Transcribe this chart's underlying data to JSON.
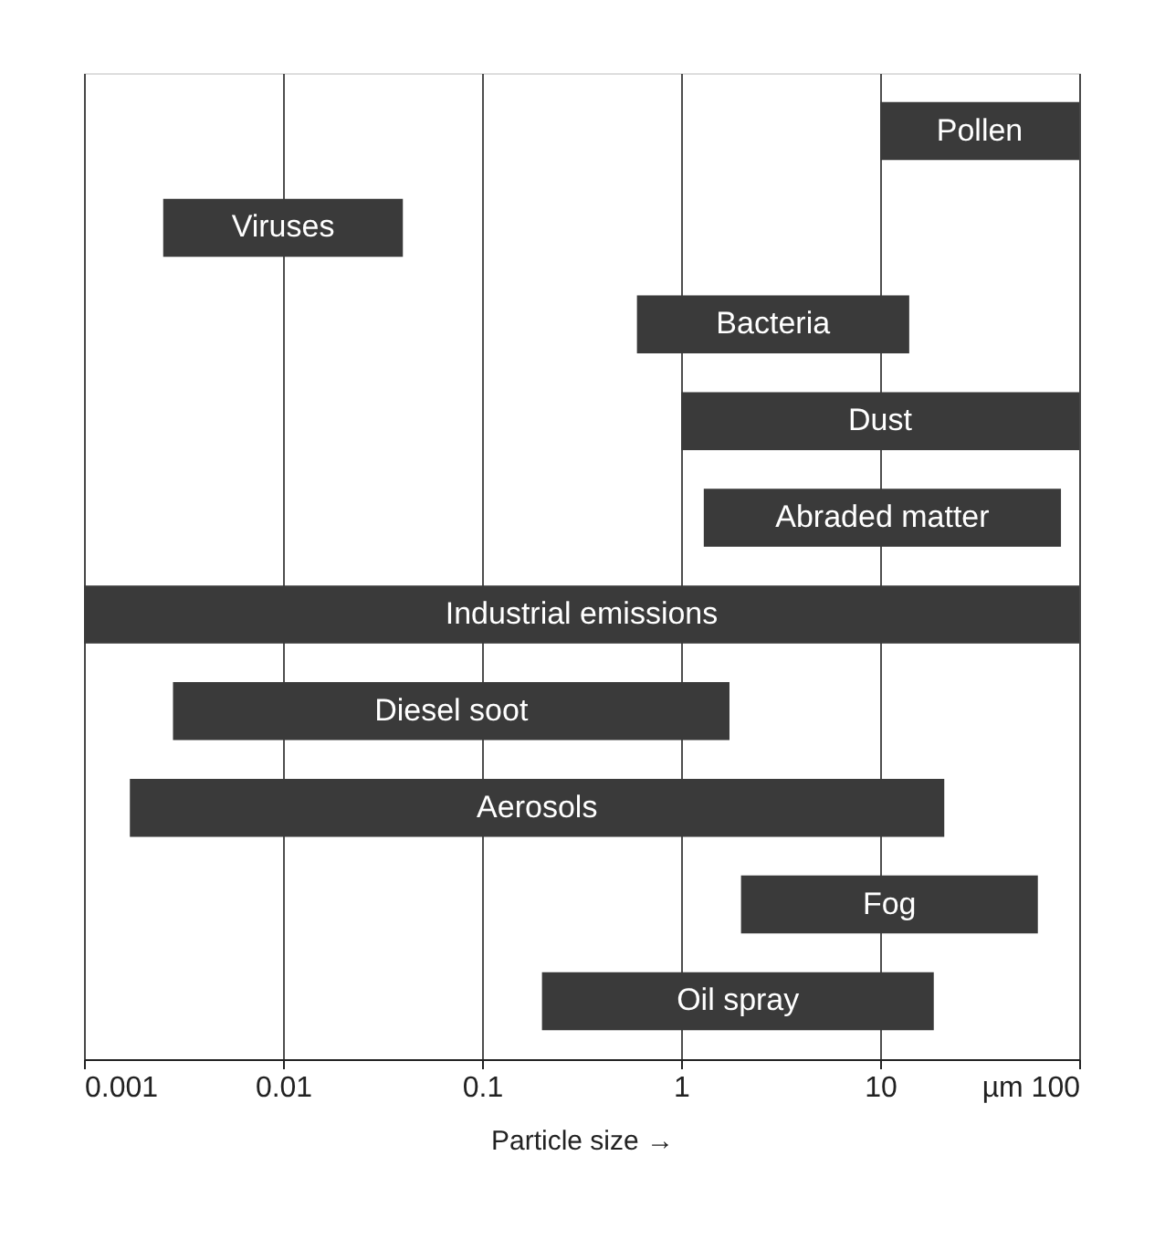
{
  "chart_data": {
    "type": "bar",
    "orientation": "horizontal",
    "log": "x",
    "xlabel": "Particle size →",
    "categories": [
      "Pollen",
      "Viruses",
      "Bacteria",
      "Dust",
      "Abraded matter",
      "Industrial emissions",
      "Diesel soot",
      "Aerosols",
      "Fog",
      "Oil spray"
    ],
    "base": [
      10,
      0.0025,
      0.6,
      1,
      1.3,
      0.001,
      0.0028,
      0.0017,
      2,
      0.2
    ],
    "values": [
      90,
      0.0375,
      13.4,
      99,
      79.7,
      99.999,
      1.7472,
      20.9983,
      60,
      18.4
    ],
    "color": "#3a3a3a",
    "xlim": [
      0.001,
      100
    ],
    "xticks": [
      0.001,
      0.01,
      0.1,
      1,
      10,
      {
        "value": 100,
        "label": "µm 100"
      }
    ],
    "grid": "x"
  }
}
